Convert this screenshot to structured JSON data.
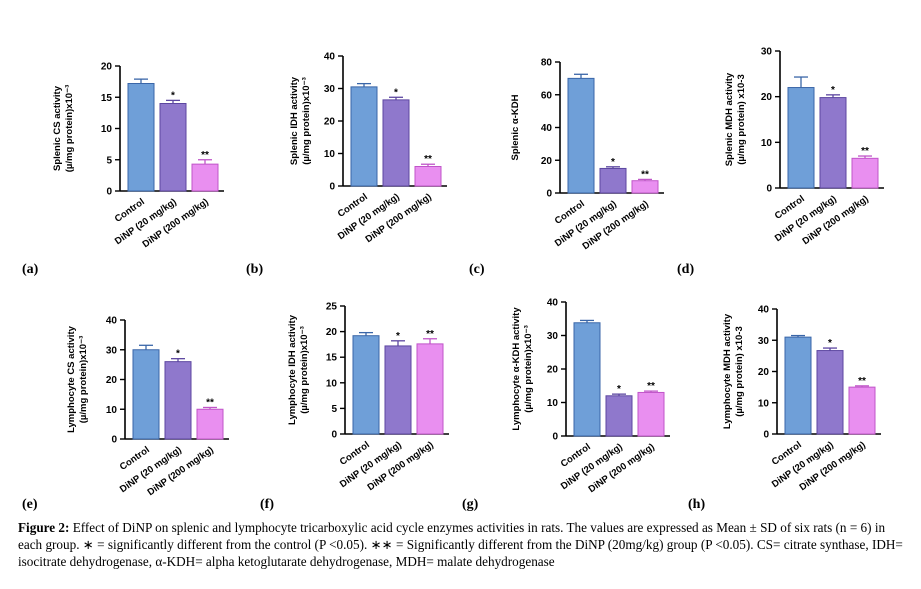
{
  "chart_data": [
    {
      "type": "bar",
      "panel": "(a)",
      "ylabel_lines": [
        "Splenic CS activity",
        "(µ/mg protein)x10⁻³"
      ],
      "categories": [
        "Control",
        "DiNP (20 mg/kg)",
        "DiNP (200 mg/kg)"
      ],
      "values": [
        17.2,
        14.0,
        4.3
      ],
      "errors": [
        0.7,
        0.5,
        0.7
      ],
      "marks": [
        "",
        "*",
        "**"
      ],
      "ylim": [
        0,
        20
      ],
      "yticks": [
        0,
        5,
        10,
        15,
        20
      ]
    },
    {
      "type": "bar",
      "panel": "(b)",
      "ylabel_lines": [
        "Splenic IDH activity",
        "(µ/mg protein)x10⁻³"
      ],
      "categories": [
        "Control",
        "DiNP (20 mg/kg)",
        "DiNP (200 mg/kg)"
      ],
      "values": [
        30.5,
        26.5,
        6.0
      ],
      "errors": [
        1.0,
        0.8,
        0.7
      ],
      "marks": [
        "",
        "*",
        "**"
      ],
      "ylim": [
        0,
        40
      ],
      "yticks": [
        0,
        10,
        20,
        30,
        40
      ]
    },
    {
      "type": "bar",
      "panel": "(c)",
      "ylabel_lines": [
        "Splenic α-KDH"
      ],
      "categories": [
        "Control",
        "DiNP (20 mg/kg)",
        "DiNP (200 mg/kg)"
      ],
      "values": [
        70.0,
        15.0,
        7.5
      ],
      "errors": [
        2.5,
        1.0,
        0.8
      ],
      "marks": [
        "",
        "*",
        "**"
      ],
      "ylim": [
        0,
        80
      ],
      "yticks": [
        0,
        20,
        40,
        60,
        80
      ]
    },
    {
      "type": "bar",
      "panel": "(d)",
      "ylabel_lines": [
        "Splenic MDH activity",
        "(µ/mg protein) x10-3"
      ],
      "categories": [
        "Control",
        "DiNP (20 mg/kg)",
        "DiNP (200 mg/kg)"
      ],
      "values": [
        22.0,
        19.8,
        6.5
      ],
      "errors": [
        2.3,
        0.6,
        0.5
      ],
      "marks": [
        "",
        "*",
        "**"
      ],
      "ylim": [
        0,
        30
      ],
      "yticks": [
        0,
        10,
        20,
        30
      ]
    },
    {
      "type": "bar",
      "panel": "(e)",
      "ylabel_lines": [
        "Lymphocyte CS activity",
        "(µ/mg protein)x10⁻³"
      ],
      "categories": [
        "Control",
        "DiNP (20 mg/kg)",
        "DiNP (200 mg/kg)"
      ],
      "values": [
        30.0,
        26.0,
        10.0
      ],
      "errors": [
        1.5,
        1.0,
        0.6
      ],
      "marks": [
        "",
        "*",
        "**"
      ],
      "ylim": [
        0,
        40
      ],
      "yticks": [
        0,
        10,
        20,
        30,
        40
      ]
    },
    {
      "type": "bar",
      "panel": "(f)",
      "ylabel_lines": [
        "Lymphocyte IDH activity",
        "(µ/mg protein)x10⁻³"
      ],
      "categories": [
        "Control",
        "DiNP (20 mg/kg)",
        "DiNP (200 mg/kg)"
      ],
      "values": [
        19.2,
        17.2,
        17.6
      ],
      "errors": [
        0.6,
        1.0,
        1.0
      ],
      "marks": [
        "",
        "*",
        "**"
      ],
      "ylim": [
        0,
        25
      ],
      "yticks": [
        0,
        5,
        10,
        15,
        20,
        25
      ]
    },
    {
      "type": "bar",
      "panel": "(g)",
      "ylabel_lines": [
        "Lymphocyte α-KDH activity",
        "(µ/mg protein)x10⁻³"
      ],
      "categories": [
        "Control",
        "DiNP (20 mg/kg)",
        "DiNP (200 mg/kg)"
      ],
      "values": [
        33.8,
        12.0,
        13.0
      ],
      "errors": [
        0.7,
        0.5,
        0.4
      ],
      "marks": [
        "",
        "*",
        "**"
      ],
      "ylim": [
        0,
        40
      ],
      "yticks": [
        0,
        10,
        20,
        30,
        40
      ]
    },
    {
      "type": "bar",
      "panel": "(h)",
      "ylabel_lines": [
        "Lymphocyte MDH activity",
        "(µ/mg protein) x10-3"
      ],
      "categories": [
        "Control",
        "DiNP (20 mg/kg)",
        "DiNP (200 mg/kg)"
      ],
      "values": [
        31.0,
        26.7,
        15.0
      ],
      "errors": [
        0.5,
        0.8,
        0.4
      ],
      "marks": [
        "",
        "*",
        "**"
      ],
      "ylim": [
        0,
        40
      ],
      "yticks": [
        0,
        10,
        20,
        30,
        40
      ]
    }
  ],
  "colors": {
    "control": "#6f9fd8",
    "low_dose": "#8f78cc",
    "high_dose": "#e98ff0"
  },
  "caption": {
    "lead": "Figure 2:",
    "text": " Effect of DiNP on splenic and lymphocyte tricarboxylic acid cycle enzymes activities in rats. The values are expressed as Mean ± SD of six rats (n = 6) in each group. ∗ = significantly different from the control (P <0.05). ∗∗ = Significantly different from the DiNP (20mg/kg) group (P <0.05). CS= citrate synthase, IDH= isocitrate dehydrogenase, α-KDH= alpha ketoglutarate dehydrogenase, MDH= malate dehydrogenase"
  }
}
